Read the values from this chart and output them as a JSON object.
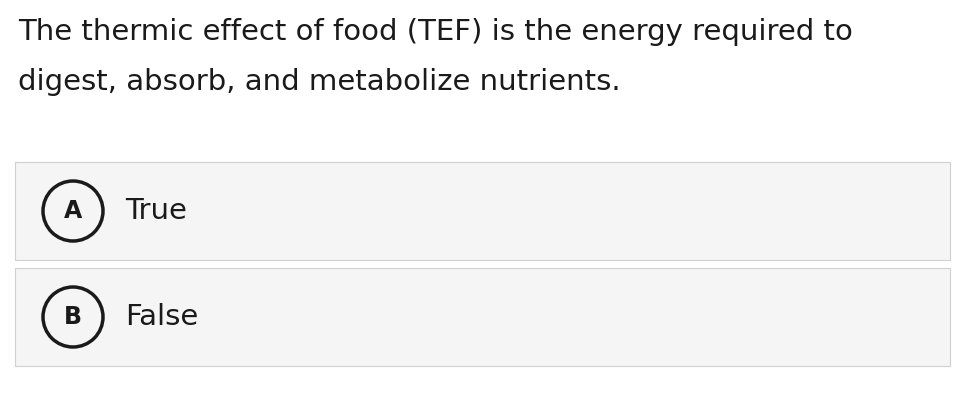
{
  "background_color": "#ffffff",
  "question_text_line1": "The thermic effect of food (TEF) is the energy required to",
  "question_text_line2": "digest, absorb, and metabolize nutrients.",
  "options": [
    {
      "label": "A",
      "text": "True"
    },
    {
      "label": "B",
      "text": "False"
    }
  ],
  "option_bg_color": "#f5f5f5",
  "option_border_color": "#d0d0d0",
  "text_color": "#1a1a1a",
  "circle_color": "#1a1a1a",
  "question_fontsize": 21,
  "option_fontsize": 21,
  "label_fontsize": 17,
  "fig_width": 9.65,
  "fig_height": 3.97,
  "dpi": 100
}
